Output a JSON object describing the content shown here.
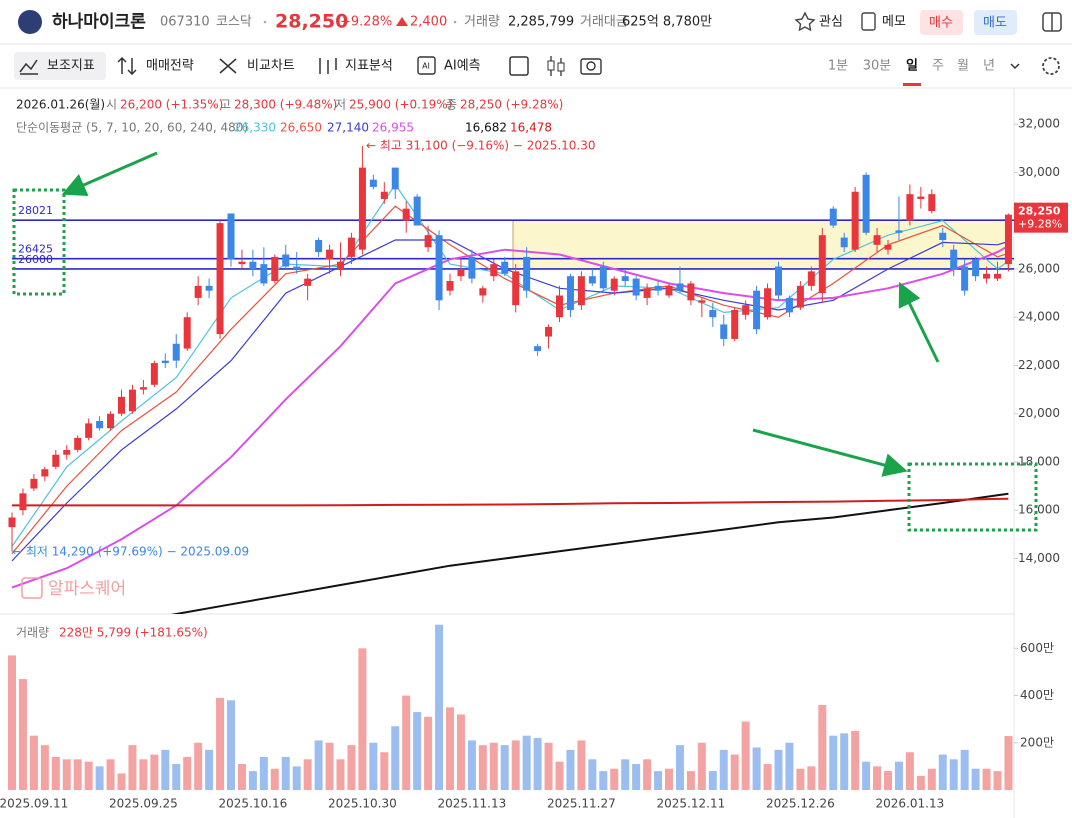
{
  "header": {
    "name": "하나마이크론",
    "code": "067310",
    "market": "코스닥",
    "price": "28,250",
    "change_rate": "+9.28%",
    "change": "2,400",
    "volume_label": "거래량",
    "volume": "2,285,799",
    "amount_label": "거래대금",
    "amount": "625억 8,780만",
    "buttons": [
      "관심",
      "메모",
      "매수",
      "매도"
    ]
  },
  "toolbar": {
    "tools": [
      "보조지표",
      "매매전략",
      "비교차트",
      "지표분석",
      "AI예측"
    ],
    "periods": [
      "1분",
      "30분",
      "일",
      "주",
      "월",
      "년"
    ],
    "active_period": 2
  },
  "chart_data": {
    "type": "candlestick",
    "date": "2026.01.26(월)",
    "ohlc_labels": [
      "시",
      "고",
      "저",
      "종"
    ],
    "ohlc_values": [
      "26,200 (+1.35%)",
      "28,300 (+9.48%)",
      "25,900 (+0.19%)",
      "28,250 (+9.28%)"
    ],
    "ma_title": "단순이동평균 (5, 7, 10, 20, 60, 240, 480)",
    "ma_x": [
      0,
      5,
      10,
      15,
      20,
      25,
      30,
      35,
      40,
      45,
      50,
      55,
      60,
      65,
      70,
      75,
      80,
      85,
      90,
      91
    ],
    "ma": [
      {
        "color": "#4fc3e0",
        "values": [
          14500,
          17800,
          19700,
          21500,
          24800,
          26200,
          26100,
          29500,
          26200,
          25800,
          24300,
          25300,
          25200,
          24200,
          24400,
          26400,
          27400,
          28000,
          26000,
          26330
        ],
        "value_label": "26,330"
      },
      {
        "color": "#e8533c",
        "values": [
          14200,
          17000,
          19300,
          20900,
          23500,
          25800,
          26200,
          28600,
          27000,
          25600,
          24500,
          25000,
          25300,
          24500,
          24000,
          25400,
          27000,
          27800,
          26500,
          26650
        ],
        "value_label": "26,650"
      },
      {
        "color": "#3b3bd6",
        "values": [
          13900,
          16300,
          18500,
          20200,
          22200,
          25000,
          26100,
          27200,
          27200,
          26000,
          25200,
          25000,
          25200,
          24700,
          24300,
          24700,
          26000,
          27100,
          27000,
          27140
        ],
        "value_label": "27,140"
      },
      {
        "color": "#d94fe8",
        "values": [
          12800,
          13600,
          14800,
          16200,
          18200,
          20600,
          22800,
          25400,
          26400,
          26800,
          26600,
          26000,
          25400,
          25000,
          24700,
          24800,
          25200,
          25800,
          26700,
          26955
        ],
        "value_label": "26,955"
      },
      {
        "color": "#111111",
        "values": [
          10800,
          11000,
          11300,
          11700,
          12100,
          12500,
          12900,
          13300,
          13700,
          14000,
          14300,
          14600,
          14900,
          15200,
          15500,
          15700,
          16000,
          16300,
          16620,
          16682
        ],
        "value_label": "16,682"
      },
      {
        "color": "#d01c1c",
        "values": [
          16200,
          16200,
          16200,
          16200,
          16200,
          16200,
          16210,
          16220,
          16230,
          16240,
          16260,
          16290,
          16300,
          16320,
          16340,
          16360,
          16390,
          16420,
          16470,
          16478
        ],
        "value_label": "16,478"
      }
    ],
    "up_color": "#e8363c",
    "down_color": "#3b87e8",
    "candles": [
      [
        15300,
        15900,
        14290,
        15700
      ],
      [
        16000,
        16900,
        15800,
        16700
      ],
      [
        16900,
        17500,
        16800,
        17300
      ],
      [
        17400,
        17800,
        17200,
        17700
      ],
      [
        17800,
        18500,
        17700,
        18300
      ],
      [
        18300,
        18700,
        18100,
        18500
      ],
      [
        18500,
        19100,
        18400,
        19000
      ],
      [
        19000,
        19800,
        18900,
        19600
      ],
      [
        19700,
        19900,
        19300,
        19400
      ],
      [
        19400,
        20100,
        19300,
        20000
      ],
      [
        20000,
        21000,
        19900,
        20700
      ],
      [
        20100,
        21200,
        20000,
        21000
      ],
      [
        21000,
        21400,
        20800,
        21100
      ],
      [
        21200,
        22200,
        21100,
        22100
      ],
      [
        22200,
        22500,
        21900,
        22100
      ],
      [
        22900,
        23300,
        21900,
        22200
      ],
      [
        22700,
        24200,
        22600,
        24000
      ],
      [
        24800,
        25700,
        24500,
        25300
      ],
      [
        25300,
        25600,
        24800,
        25100
      ],
      [
        23300,
        28000,
        23100,
        27900
      ],
      [
        28300,
        28300,
        26100,
        26400
      ],
      [
        26200,
        26800,
        26000,
        26300
      ],
      [
        26300,
        26800,
        25700,
        26000
      ],
      [
        26200,
        26900,
        25300,
        25400
      ],
      [
        25500,
        26600,
        25400,
        26500
      ],
      [
        26600,
        27000,
        26000,
        26100
      ],
      [
        26100,
        26700,
        25800,
        26000
      ],
      [
        25300,
        25800,
        24700,
        25600
      ],
      [
        27200,
        27300,
        26500,
        26700
      ],
      [
        26400,
        27000,
        25800,
        26800
      ],
      [
        26000,
        27100,
        25700,
        26300
      ],
      [
        26500,
        27500,
        26200,
        27300
      ],
      [
        26800,
        31100,
        26600,
        30200
      ],
      [
        29700,
        29900,
        29300,
        29400
      ],
      [
        28900,
        29600,
        28700,
        29200
      ],
      [
        30200,
        30200,
        28900,
        29300
      ],
      [
        28000,
        28800,
        27500,
        28500
      ],
      [
        29000,
        29100,
        27800,
        27800
      ],
      [
        26900,
        27800,
        26700,
        27400
      ],
      [
        27400,
        27600,
        24300,
        24700
      ],
      [
        25100,
        25800,
        24900,
        25500
      ],
      [
        25700,
        26400,
        25500,
        26000
      ],
      [
        26500,
        26800,
        25400,
        25600
      ],
      [
        24900,
        25300,
        24600,
        25200
      ],
      [
        25700,
        26400,
        25500,
        26200
      ],
      [
        26300,
        26500,
        25700,
        25800
      ],
      [
        24500,
        26200,
        24200,
        25900
      ],
      [
        26500,
        26900,
        24800,
        25100
      ],
      [
        22800,
        22900,
        22400,
        22600
      ],
      [
        23200,
        23700,
        22700,
        23600
      ],
      [
        24000,
        25300,
        23800,
        24900
      ],
      [
        25700,
        25800,
        24000,
        24300
      ],
      [
        24500,
        25900,
        24300,
        25700
      ],
      [
        25700,
        26000,
        25300,
        25400
      ],
      [
        26100,
        26300,
        25000,
        25200
      ],
      [
        25100,
        25700,
        24900,
        25600
      ],
      [
        25700,
        26000,
        25300,
        25500
      ],
      [
        25600,
        25700,
        24700,
        24900
      ],
      [
        24800,
        25400,
        24500,
        25200
      ],
      [
        25300,
        25500,
        24900,
        25100
      ],
      [
        24900,
        25400,
        24800,
        25300
      ],
      [
        25400,
        26100,
        25000,
        25100
      ],
      [
        24700,
        25500,
        24500,
        25400
      ],
      [
        24600,
        24800,
        24000,
        24700
      ],
      [
        24300,
        24600,
        23600,
        24000
      ],
      [
        23700,
        24100,
        22800,
        23100
      ],
      [
        23100,
        24400,
        23000,
        24300
      ],
      [
        24100,
        24700,
        23900,
        24500
      ],
      [
        25100,
        25300,
        23300,
        23500
      ],
      [
        24000,
        25400,
        23900,
        25200
      ],
      [
        26100,
        26300,
        24700,
        24900
      ],
      [
        24800,
        24900,
        24000,
        24200
      ],
      [
        24400,
        25500,
        24300,
        25300
      ],
      [
        25300,
        26100,
        25100,
        25900
      ],
      [
        25000,
        27700,
        24600,
        27400
      ],
      [
        28500,
        28600,
        27700,
        27800
      ],
      [
        27300,
        27500,
        26700,
        26900
      ],
      [
        26800,
        29400,
        26700,
        29200
      ],
      [
        29900,
        30000,
        27400,
        27500
      ],
      [
        27000,
        27700,
        26700,
        27400
      ],
      [
        26800,
        27200,
        26600,
        27000
      ],
      [
        27600,
        29000,
        27200,
        27500
      ],
      [
        28000,
        29500,
        27800,
        29100
      ],
      [
        28900,
        29400,
        28500,
        29000
      ],
      [
        28400,
        29300,
        28300,
        29100
      ],
      [
        27500,
        27700,
        26900,
        27200
      ],
      [
        26800,
        27000,
        25700,
        26000
      ],
      [
        26100,
        26400,
        24900,
        25100
      ],
      [
        26400,
        26500,
        25500,
        25700
      ],
      [
        25600,
        26100,
        25400,
        25800
      ],
      [
        25600,
        26300,
        25500,
        25800
      ],
      [
        26200,
        28300,
        25900,
        28250
      ]
    ],
    "categories": [
      null,
      null,
      "2025.09.11",
      null,
      null,
      null,
      null,
      null,
      null,
      null,
      null,
      null,
      "2025.09.25",
      null,
      null,
      null,
      null,
      null,
      null,
      null,
      null,
      null,
      "2025.10.16",
      null,
      null,
      null,
      null,
      null,
      null,
      null,
      null,
      null,
      "2025.10.30",
      null,
      null,
      null,
      null,
      null,
      null,
      null,
      null,
      null,
      "2025.11.13",
      null,
      null,
      null,
      null,
      null,
      null,
      null,
      null,
      null,
      "2025.11.27",
      null,
      null,
      null,
      null,
      null,
      null,
      null,
      null,
      null,
      "2025.12.11",
      null,
      null,
      null,
      null,
      null,
      null,
      null,
      null,
      null,
      "2025.12.26",
      null,
      null,
      null,
      null,
      null,
      null,
      null,
      null,
      null,
      "2026.01.13",
      null,
      null,
      null,
      null,
      null,
      null,
      null,
      null,
      null
    ],
    "ylim": [
      11700,
      33500
    ],
    "yticks": [
      {
        "value": 14000,
        "label": "14,000"
      },
      {
        "value": 16000,
        "label": "16,000"
      },
      {
        "value": 18000,
        "label": "18,000"
      },
      {
        "value": 20000,
        "label": "20,000"
      },
      {
        "value": 22000,
        "label": "22,000"
      },
      {
        "value": 24000,
        "label": "24,000"
      },
      {
        "value": 26000,
        "label": "26,000"
      },
      {
        "value": 28000,
        "label": "28,000"
      },
      {
        "value": 30000,
        "label": "30,000"
      },
      {
        "value": 32000,
        "label": "32,000"
      }
    ],
    "levels": [
      28021,
      26425,
      26000
    ],
    "level_color": "#2b2bc8",
    "last_label": "28,250",
    "last_change": "+9.28%",
    "high_note": "← 최고 31,100 (−9.16%) − 2025.10.30",
    "low_note": "← 최저 14,290 (+97.69%) − 2025.09.09",
    "watermark": "알파스퀘어",
    "volume": {
      "title": "거래량",
      "summary": "228만 5,799 (+181.65%)",
      "up_color": "#f4a3a3",
      "down_color": "#9cbdf0",
      "ylim": [
        0,
        7200000
      ],
      "yticks": [
        {
          "value": 2000000,
          "label": "200만"
        },
        {
          "value": 4000000,
          "label": "400만"
        },
        {
          "value": 6000000,
          "label": "600만"
        }
      ],
      "values": [
        5700000,
        4700000,
        2300000,
        1900000,
        1400000,
        1300000,
        1300000,
        1200000,
        1000000,
        1300000,
        700000,
        1900000,
        1300000,
        1500000,
        1700000,
        1100000,
        1400000,
        2000000,
        1700000,
        3900000,
        3800000,
        1100000,
        800000,
        1400000,
        900000,
        1400000,
        1000000,
        1300000,
        2100000,
        2000000,
        1300000,
        1900000,
        6000000,
        2000000,
        1600000,
        2700000,
        4000000,
        3300000,
        3100000,
        7000000,
        3500000,
        3200000,
        2100000,
        1900000,
        2000000,
        1900000,
        2100000,
        2300000,
        2200000,
        2000000,
        1200000,
        1700000,
        2100000,
        1300000,
        800000,
        900000,
        1300000,
        1100000,
        1300000,
        800000,
        900000,
        1900000,
        800000,
        2000000,
        800000,
        1700000,
        1500000,
        2900000,
        1800000,
        1100000,
        1700000,
        2000000,
        900000,
        1000000,
        3600000,
        2300000,
        2400000,
        2500000,
        1200000,
        1000000,
        800000,
        1200000,
        1600000,
        600000,
        900000,
        1500000,
        1300000,
        1700000,
        900000,
        900000,
        800000,
        2285799
      ]
    }
  }
}
